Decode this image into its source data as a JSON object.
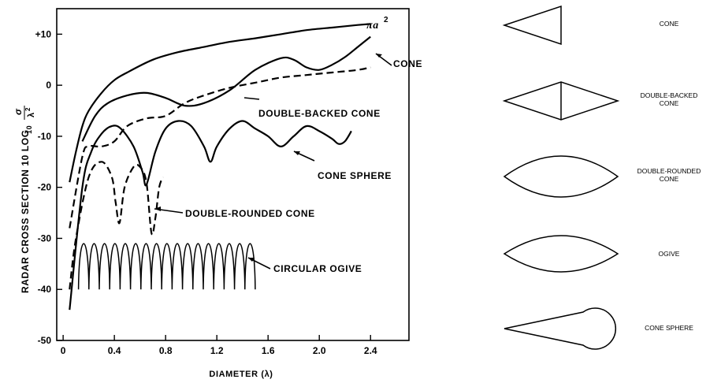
{
  "chart_data": {
    "type": "line",
    "xlabel": "DIAMETER (λ)",
    "ylabel": "RADAR CROSS SECTION 10 LOG",
    "ylabel_sub": "10",
    "ylabel_frac_num": "σ",
    "ylabel_frac_den": "λ",
    "ylabel_frac_exp": "2",
    "xlim": [
      -0.05,
      2.7
    ],
    "ylim": [
      -50,
      15
    ],
    "x_ticks": [
      0,
      0.4,
      0.8,
      1.2,
      1.6,
      2.0,
      2.4
    ],
    "x_tick_labels": [
      "0",
      "0.4",
      "0.8",
      "1.2",
      "1.6",
      "2.0",
      "2.4"
    ],
    "y_ticks": [
      10,
      0,
      -10,
      -20,
      -30,
      -40,
      -50
    ],
    "y_tick_labels": [
      "+10",
      "0",
      "-10",
      "-20",
      "-30",
      "-40",
      "-50"
    ],
    "grid": false,
    "series": [
      {
        "name": "πa",
        "name_exp": "2",
        "style": "solid",
        "x": [
          0.05,
          0.1,
          0.15,
          0.2,
          0.3,
          0.4,
          0.5,
          0.7,
          0.9,
          1.1,
          1.3,
          1.5,
          1.7,
          1.9,
          2.1,
          2.3,
          2.4
        ],
        "y": [
          -19,
          -13,
          -8,
          -5,
          -1.5,
          1,
          2.5,
          5,
          6.5,
          7.5,
          8.5,
          9.2,
          10,
          10.8,
          11.3,
          11.8,
          12
        ]
      },
      {
        "name": "CONE",
        "style": "solid",
        "x": [
          0.15,
          0.25,
          0.35,
          0.5,
          0.65,
          0.8,
          0.95,
          1.1,
          1.3,
          1.5,
          1.7,
          1.8,
          1.9,
          2.0,
          2.1,
          2.2,
          2.3,
          2.4
        ],
        "y": [
          -11,
          -6,
          -3.5,
          -2,
          -1.5,
          -2.5,
          -4,
          -3.5,
          -1,
          3,
          5.3,
          5,
          3.5,
          3,
          4,
          5.5,
          7.5,
          9.5
        ]
      },
      {
        "name": "DOUBLE-BACKED CONE",
        "style": "dashed",
        "x": [
          0.05,
          0.15,
          0.2,
          0.3,
          0.4,
          0.5,
          0.65,
          0.8,
          0.95,
          1.1,
          1.3,
          1.5,
          1.7,
          1.9,
          2.1,
          2.3,
          2.4
        ],
        "y": [
          -28,
          -14,
          -12,
          -12,
          -11,
          -8,
          -6.5,
          -6,
          -3.5,
          -2,
          -0.5,
          0.5,
          1.5,
          2,
          2.5,
          3,
          3.5
        ]
      },
      {
        "name": "CONE SPHERE",
        "style": "solid",
        "x": [
          0.05,
          0.15,
          0.22,
          0.3,
          0.38,
          0.45,
          0.55,
          0.62,
          0.65,
          0.72,
          0.8,
          0.9,
          1.0,
          1.1,
          1.15,
          1.2,
          1.3,
          1.4,
          1.5,
          1.6,
          1.7,
          1.8,
          1.9,
          2.0,
          2.1,
          2.15,
          2.2,
          2.25
        ],
        "y": [
          -44,
          -20,
          -13,
          -9.5,
          -8,
          -8.5,
          -12,
          -17,
          -19.5,
          -13,
          -8.5,
          -7,
          -8,
          -12,
          -15,
          -12,
          -8.5,
          -7,
          -8.5,
          -10,
          -12,
          -10,
          -8,
          -9,
          -10.5,
          -11.5,
          -11,
          -9
        ]
      },
      {
        "name": "DOUBLE-ROUNDED CONE",
        "style": "dashed",
        "x": [
          0.05,
          0.1,
          0.2,
          0.3,
          0.38,
          0.41,
          0.44,
          0.48,
          0.55,
          0.6,
          0.65,
          0.69,
          0.72,
          0.75,
          0.78
        ],
        "y": [
          -40,
          -30,
          -18,
          -15,
          -18,
          -23,
          -27,
          -20,
          -16,
          -16,
          -19,
          -29,
          -26,
          -20,
          -18
        ]
      }
    ],
    "oscillating_series": {
      "name": "CIRCULAR OGIVE",
      "x_start": 0.12,
      "x_end": 1.5,
      "y_top": -28.5,
      "y_bottom": -40,
      "lobes": 17
    },
    "annotations": [
      {
        "text": "πa",
        "exp": "2",
        "series": 0
      },
      {
        "text": "CONE",
        "series": 1
      },
      {
        "text": "DOUBLE-BACKED CONE",
        "series": 2
      },
      {
        "text": "CONE SPHERE",
        "series": 3
      },
      {
        "text": "DOUBLE-ROUNDED CONE",
        "series": 4
      },
      {
        "text": "CIRCULAR OGIVE",
        "series": 5
      }
    ]
  },
  "shapes": [
    {
      "icon": "cone-icon",
      "label_lines": [
        "CONE"
      ]
    },
    {
      "icon": "double-backed-cone-icon",
      "label_lines": [
        "DOUBLE-BACKED",
        "CONE"
      ]
    },
    {
      "icon": "double-rounded-cone-icon",
      "label_lines": [
        "DOUBLE-ROUNDED",
        "CONE"
      ]
    },
    {
      "icon": "ogive-icon",
      "label_lines": [
        "OGIVE"
      ]
    },
    {
      "icon": "cone-sphere-icon",
      "label_lines": [
        "CONE SPHERE"
      ]
    }
  ]
}
